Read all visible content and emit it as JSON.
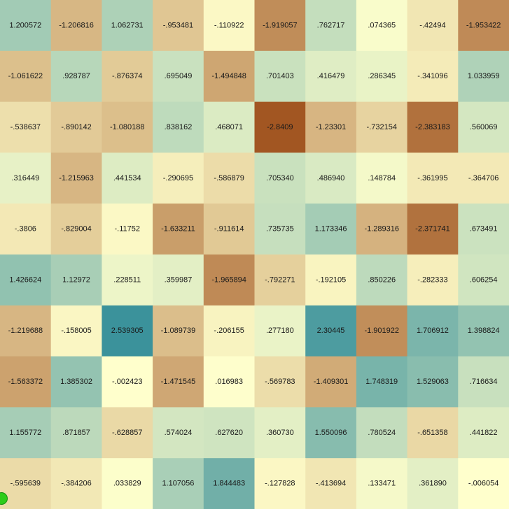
{
  "chart_data": {
    "type": "heatmap",
    "title": "",
    "xlabel": "",
    "ylabel": "",
    "grid": false,
    "legend": "none",
    "colormap": {
      "low": "#a0521e",
      "mid": "#ffffcc",
      "high": "#1f8294",
      "vmin": -2.9,
      "vmax": 2.9
    },
    "rows": [
      {
        "values": [
          1.200572,
          -1.206816,
          1.062731,
          -0.953481,
          -0.110922,
          -1.919057,
          0.762717,
          0.074365,
          -0.42494,
          -1.953422
        ],
        "labels": [
          "1.200572",
          "-1.206816",
          "1.062731",
          "-.953481",
          "-.110922",
          "-1.919057",
          ".762717",
          ".074365",
          "-.42494",
          "-1.953422"
        ]
      },
      {
        "values": [
          -1.061622,
          0.928787,
          -0.876374,
          0.695049,
          -1.494848,
          0.701403,
          0.416479,
          0.286345,
          -0.341096,
          1.033959
        ],
        "labels": [
          "-1.061622",
          ".928787",
          "-.876374",
          ".695049",
          "-1.494848",
          ".701403",
          ".416479",
          ".286345",
          "-.341096",
          "1.033959"
        ]
      },
      {
        "values": [
          -0.538637,
          -0.890142,
          -1.080188,
          0.838162,
          0.468071,
          -2.8409,
          -1.23301,
          -0.732154,
          -2.383183,
          0.560069
        ],
        "labels": [
          "-.538637",
          "-.890142",
          "-1.080188",
          ".838162",
          ".468071",
          "-2.8409",
          "-1.23301",
          "-.732154",
          "-2.383183",
          ".560069"
        ]
      },
      {
        "values": [
          0.316449,
          -1.215963,
          0.441534,
          -0.290695,
          -0.586879,
          0.70534,
          0.48694,
          0.148784,
          -0.361995,
          -0.364706
        ],
        "labels": [
          ".316449",
          "-1.215963",
          ".441534",
          "-.290695",
          "-.586879",
          ".705340",
          ".486940",
          ".148784",
          "-.361995",
          "-.364706"
        ]
      },
      {
        "values": [
          -0.3806,
          -0.829004,
          -0.11752,
          -1.633211,
          -0.911614,
          0.735735,
          1.173346,
          -1.289316,
          -2.371741,
          0.673491
        ],
        "labels": [
          "-.3806",
          "-.829004",
          "-.11752",
          "-1.633211",
          "-.911614",
          ".735735",
          "1.173346",
          "-1.289316",
          "-2.371741",
          ".673491"
        ]
      },
      {
        "values": [
          1.426624,
          1.12972,
          0.228511,
          0.359987,
          -1.965894,
          -0.792271,
          -0.192105,
          0.850226,
          -0.282333,
          0.606254
        ],
        "labels": [
          "1.426624",
          "1.12972",
          ".228511",
          ".359987",
          "-1.965894",
          "-.792271",
          "-.192105",
          ".850226",
          "-.282333",
          ".606254"
        ]
      },
      {
        "values": [
          -1.219688,
          -0.158005,
          2.539305,
          -1.089739,
          -0.206155,
          0.27718,
          2.30445,
          -1.901922,
          1.706912,
          1.398824
        ],
        "labels": [
          "-1.219688",
          "-.158005",
          "2.539305",
          "-1.089739",
          "-.206155",
          ".277180",
          "2.30445",
          "-1.901922",
          "1.706912",
          "1.398824"
        ]
      },
      {
        "values": [
          -1.563372,
          1.385302,
          -0.002423,
          -1.471545,
          0.016983,
          -0.569783,
          -1.409301,
          1.748319,
          1.529063,
          0.716634
        ],
        "labels": [
          "-1.563372",
          "1.385302",
          "-.002423",
          "-1.471545",
          ".016983",
          "-.569783",
          "-1.409301",
          "1.748319",
          "1.529063",
          ".716634"
        ]
      },
      {
        "values": [
          1.155772,
          0.871857,
          -0.628857,
          0.574024,
          0.62762,
          0.36073,
          1.550096,
          0.780524,
          -0.651358,
          0.441822
        ],
        "labels": [
          "1.155772",
          ".871857",
          "-.628857",
          ".574024",
          ".627620",
          ".360730",
          "1.550096",
          ".780524",
          "-.651358",
          ".441822"
        ]
      },
      {
        "values": [
          -0.595639,
          -0.384206,
          0.033829,
          1.107056,
          1.844483,
          -0.127828,
          -0.413694,
          0.133471,
          0.36189,
          -0.006054
        ],
        "labels": [
          "-.595639",
          "-.384206",
          ".033829",
          "1.107056",
          "1.844483",
          "-.127828",
          "-.413694",
          ".133471",
          ".361890",
          "-.006054"
        ]
      }
    ]
  }
}
